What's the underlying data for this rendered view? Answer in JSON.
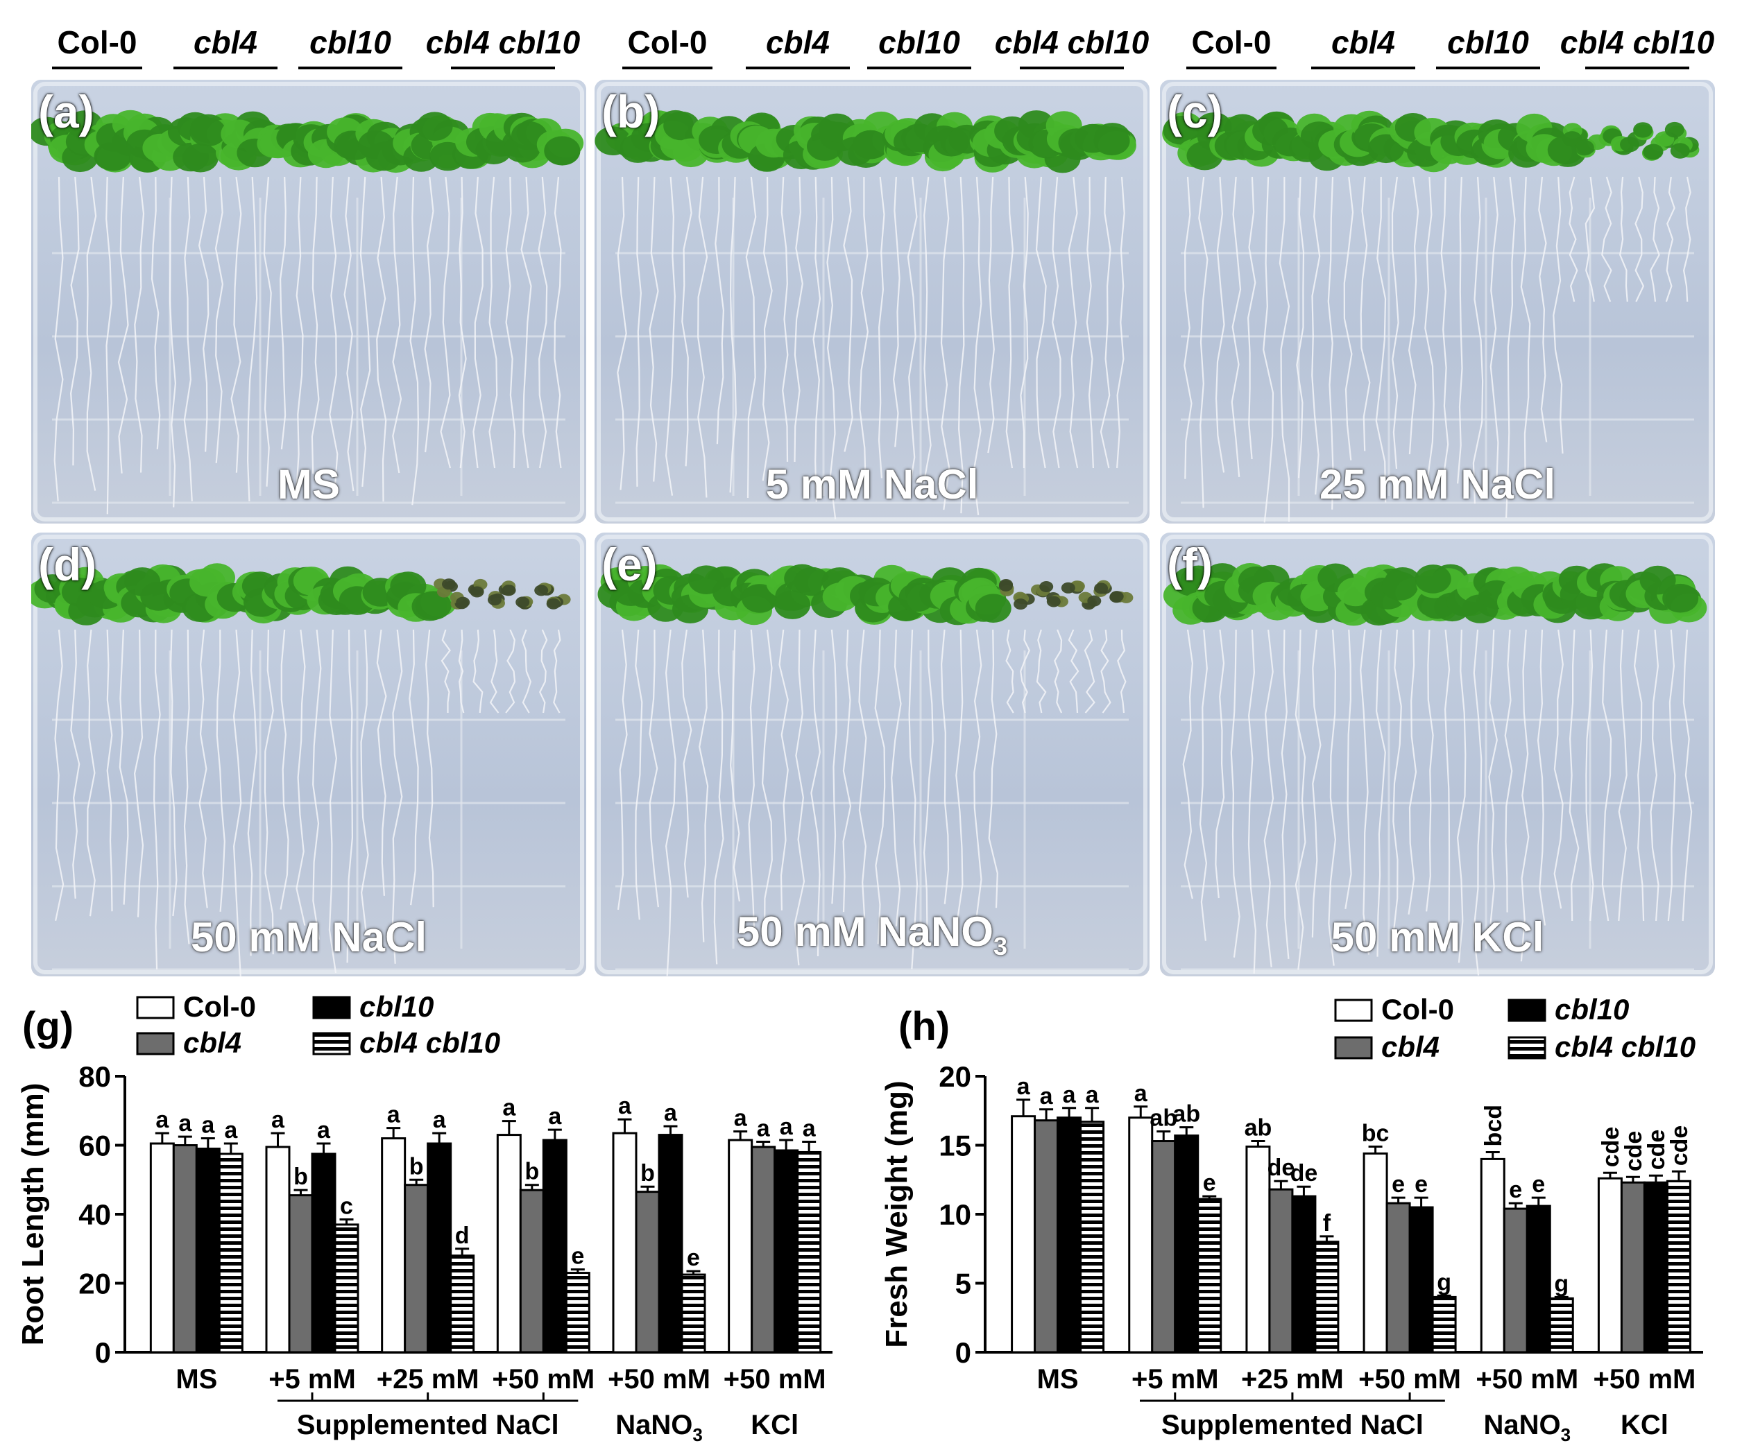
{
  "genotypes": [
    "Col-0",
    "cbl4",
    "cbl10",
    "cbl4 cbl10"
  ],
  "panels": [
    {
      "label": "(a)",
      "condition": "MS",
      "sick": 0
    },
    {
      "label": "(b)",
      "condition": "5 mM NaCl",
      "sick": 0
    },
    {
      "label": "(c)",
      "condition": "25 mM NaCl",
      "sick": 1
    },
    {
      "label": "(d)",
      "condition": "50 mM NaCl",
      "sick": 2
    },
    {
      "label": "(e)",
      "condition": "50 mM NaNO",
      "condition_sub": "3",
      "sick": 2
    },
    {
      "label": "(f)",
      "condition": "50 mM KCl",
      "sick": 0
    }
  ],
  "chart_data": [
    {
      "type": "bar",
      "panel_label": "(g)",
      "ylabel": "Root Length (mm)",
      "ylim": [
        0,
        80
      ],
      "yticks": [
        0,
        20,
        40,
        60,
        80
      ],
      "categories": [
        "MS",
        "+5 mM",
        "+25 mM",
        "+50 mM",
        "+50 mM",
        "+50 mM"
      ],
      "category_sub": [
        "",
        "",
        "",
        "",
        "NaNO3",
        "KCl"
      ],
      "group_label": "Supplemented NaCl",
      "series": [
        {
          "name": "Col-0",
          "fill": "white",
          "values": [
            60.5,
            59.5,
            62,
            63,
            63.5,
            61.5
          ],
          "errors": [
            3,
            4,
            3,
            4,
            4,
            2.5
          ],
          "letters": [
            "a",
            "a",
            "a",
            "a",
            "a",
            "a"
          ]
        },
        {
          "name": "cbl4",
          "fill": "gray",
          "values": [
            60,
            45.5,
            48.5,
            47,
            46.5,
            59.5
          ],
          "errors": [
            2.5,
            1.5,
            1.5,
            1.5,
            1.5,
            1.5
          ],
          "letters": [
            "a",
            "b",
            "b",
            "b",
            "b",
            "a"
          ]
        },
        {
          "name": "cbl10",
          "fill": "black",
          "values": [
            59,
            57.5,
            60.5,
            61.5,
            63,
            58.5
          ],
          "errors": [
            3,
            3,
            3,
            3,
            2.5,
            3
          ],
          "letters": [
            "a",
            "a",
            "a",
            "a",
            "a",
            "a"
          ]
        },
        {
          "name": "cbl4 cbl10",
          "fill": "stripe",
          "values": [
            57.5,
            37,
            28,
            23,
            22.5,
            58
          ],
          "errors": [
            3,
            1.5,
            2,
            1,
            1,
            3
          ],
          "letters": [
            "a",
            "c",
            "d",
            "e",
            "e",
            "a"
          ]
        }
      ]
    },
    {
      "type": "bar",
      "panel_label": "(h)",
      "ylabel": "Fresh Weight (mg)",
      "ylim": [
        0,
        20
      ],
      "yticks": [
        0,
        5,
        10,
        15,
        20
      ],
      "categories": [
        "MS",
        "+5 mM",
        "+25 mM",
        "+50 mM",
        "+50 mM",
        "+50 mM"
      ],
      "category_sub": [
        "",
        "",
        "",
        "",
        "NaNO3",
        "KCl"
      ],
      "group_label": "Supplemented NaCl",
      "series": [
        {
          "name": "Col-0",
          "fill": "white",
          "values": [
            17.1,
            17,
            14.9,
            14.4,
            14,
            12.6
          ],
          "errors": [
            1.2,
            0.8,
            0.4,
            0.5,
            0.5,
            0.4
          ],
          "letters": [
            "a",
            "a",
            "ab",
            "bc",
            "bcd",
            "cde"
          ]
        },
        {
          "name": "cbl4",
          "fill": "gray",
          "values": [
            16.8,
            15.3,
            11.8,
            10.8,
            10.4,
            12.3
          ],
          "errors": [
            0.8,
            0.7,
            0.6,
            0.4,
            0.4,
            0.4
          ],
          "letters": [
            "a",
            "ab",
            "de",
            "e",
            "e",
            "cde"
          ]
        },
        {
          "name": "cbl10",
          "fill": "black",
          "values": [
            17,
            15.7,
            11.3,
            10.5,
            10.6,
            12.3
          ],
          "errors": [
            0.7,
            0.6,
            0.7,
            0.7,
            0.6,
            0.5
          ],
          "letters": [
            "a",
            "ab",
            "de",
            "e",
            "e",
            "cde"
          ]
        },
        {
          "name": "cbl4 cbl10",
          "fill": "stripe",
          "values": [
            16.7,
            11.1,
            8,
            4,
            3.9,
            12.4
          ],
          "errors": [
            1,
            0.2,
            0.4,
            0.1,
            0.1,
            0.7
          ],
          "letters": [
            "a",
            "e",
            "f",
            "g",
            "g",
            "cde"
          ]
        }
      ]
    }
  ]
}
